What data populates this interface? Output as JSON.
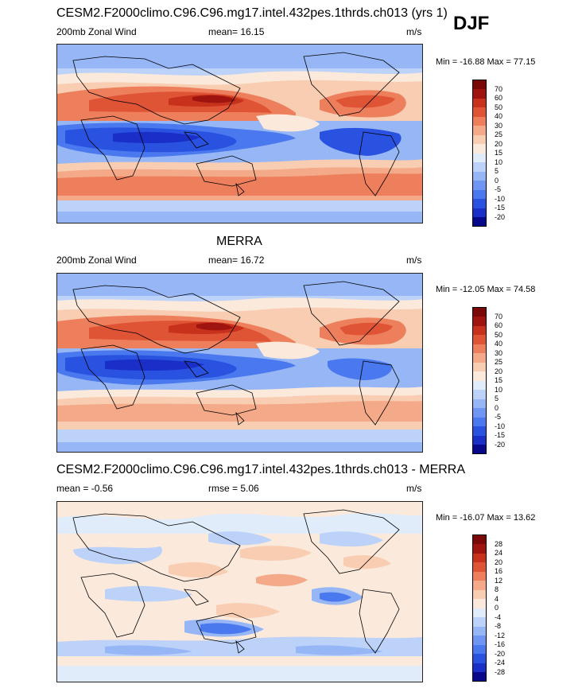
{
  "season": "DJF",
  "panels": [
    {
      "title": "CESM2.F2000climo.C96.C96.mg17.intel.432pes.1thrds.ch013 (yrs 1)",
      "left_label": "200mb Zonal Wind",
      "center_label": "mean=  16.15",
      "units": "m/s",
      "minmax": "Min = -16.88 Max =  77.15",
      "colorbar_levels": [
        "-20",
        "-15",
        "-10",
        "-5",
        "0",
        "5",
        "10",
        "15",
        "20",
        "25",
        "30",
        "40",
        "50",
        "60",
        "70"
      ],
      "colorbar_colors": [
        "#08088a",
        "#1a2fc8",
        "#2a52e0",
        "#4a78ee",
        "#6e96f2",
        "#96b6f6",
        "#bcd2f8",
        "#e0ecfa",
        "#fbe9dc",
        "#f8cdb2",
        "#f4a988",
        "#ee7f5c",
        "#e05436",
        "#c8321c",
        "#a01410",
        "#7a0808"
      ]
    },
    {
      "title": "MERRA",
      "left_label": "200mb Zonal Wind",
      "center_label": "mean=  16.72",
      "units": "m/s",
      "minmax": "Min = -12.05 Max =  74.58",
      "colorbar_levels": [
        "-20",
        "-15",
        "-10",
        "-5",
        "0",
        "5",
        "10",
        "15",
        "20",
        "25",
        "30",
        "40",
        "50",
        "60",
        "70"
      ],
      "colorbar_colors": [
        "#08088a",
        "#1a2fc8",
        "#2a52e0",
        "#4a78ee",
        "#6e96f2",
        "#96b6f6",
        "#bcd2f8",
        "#e0ecfa",
        "#fbe9dc",
        "#f8cdb2",
        "#f4a988",
        "#ee7f5c",
        "#e05436",
        "#c8321c",
        "#a01410",
        "#7a0808"
      ]
    },
    {
      "title": "CESM2.F2000climo.C96.C96.mg17.intel.432pes.1thrds.ch013 - MERRA",
      "left_label": "mean =  -0.56",
      "center_label": "rmse =   5.06",
      "units": "m/s",
      "minmax": "Min = -16.07 Max =  13.62",
      "colorbar_levels": [
        "-28",
        "-24",
        "-20",
        "-16",
        "-12",
        "-8",
        "-4",
        "0",
        "4",
        "8",
        "12",
        "16",
        "20",
        "24",
        "28"
      ],
      "colorbar_colors": [
        "#08088a",
        "#1a2fc8",
        "#2a52e0",
        "#4a78ee",
        "#6e96f2",
        "#96b6f6",
        "#bcd2f8",
        "#e0ecfa",
        "#fbe9dc",
        "#f8cdb2",
        "#f4a988",
        "#ee7f5c",
        "#e05436",
        "#c8321c",
        "#a01410",
        "#7a0808"
      ]
    }
  ]
}
